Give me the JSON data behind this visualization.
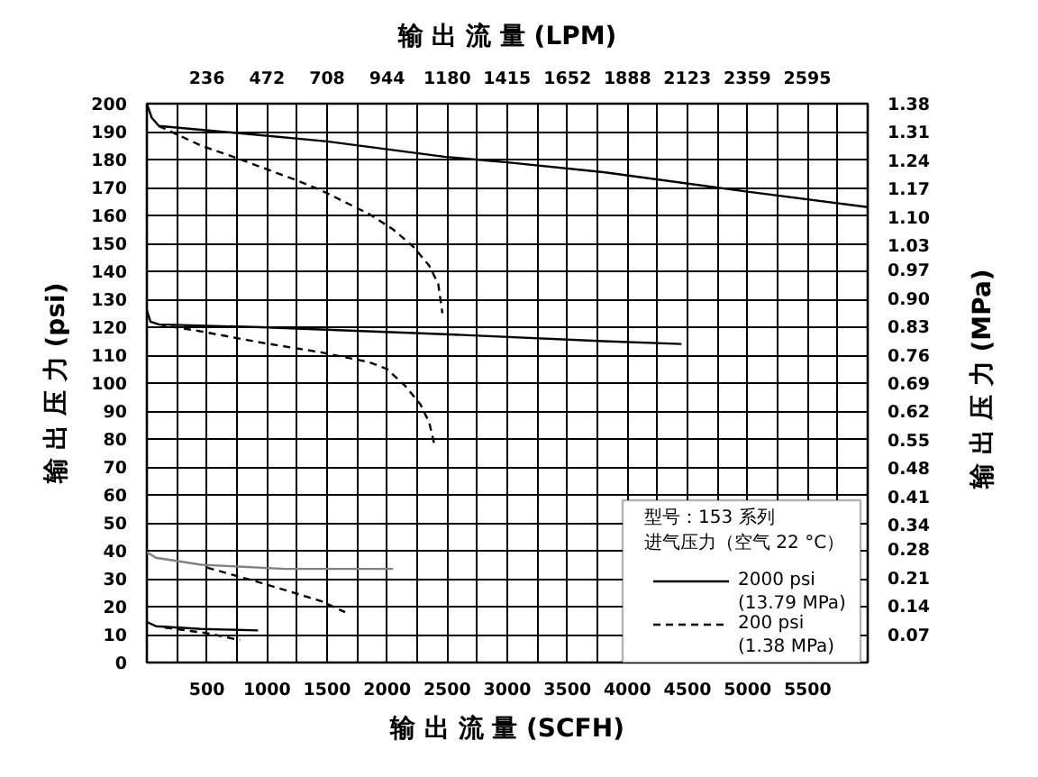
{
  "chart_data": {
    "type": "line",
    "xlabel": "输 出 流 量 (SCFH)",
    "x2label": "输 出 流 量 (LPM)",
    "ylabel": "输 出 压 力 (psi)",
    "y2label": "输 出 压 力 (MPa)",
    "annotations": [
      "型号：153 系列"
    ],
    "legend_title": "进气压力（空气 22 °C）",
    "xlim": [
      0,
      6000
    ],
    "xticks": [
      {
        "value": 250,
        "label": null
      },
      500,
      {
        "value": 750,
        "label": null
      },
      1000,
      {
        "value": 1250,
        "label": null
      },
      1500,
      {
        "value": 1750,
        "label": null
      },
      2000,
      {
        "value": 2250,
        "label": null
      },
      2500,
      {
        "value": 2750,
        "label": null
      },
      3000,
      {
        "value": 3250,
        "label": null
      },
      3500,
      {
        "value": 3750,
        "label": null
      },
      4000,
      {
        "value": 4250,
        "label": null
      },
      4500,
      {
        "value": 4750,
        "label": null
      },
      5000,
      {
        "value": 5250,
        "label": null
      },
      5500,
      {
        "value": 5750,
        "label": null
      }
    ],
    "x2lim": [
      0,
      2832
    ],
    "x2ticks": [
      236,
      472,
      708,
      944,
      1180,
      1415,
      1652,
      1888,
      2123,
      2359,
      2595
    ],
    "ylim": [
      0,
      200
    ],
    "yticks": [
      0,
      10,
      20,
      30,
      40,
      50,
      60,
      70,
      80,
      90,
      100,
      110,
      120,
      130,
      140,
      150,
      160,
      170,
      180,
      190,
      200
    ],
    "y2lim": [
      0,
      1.38
    ],
    "y2ticks": [
      0.07,
      0.14,
      0.21,
      0.28,
      0.34,
      0.41,
      0.48,
      0.55,
      0.62,
      0.69,
      0.76,
      0.83,
      {
        "value": 0.9,
        "label": "0.90"
      },
      0.97,
      1.03,
      {
        "value": 1.1,
        "label": "1.10"
      },
      1.17,
      1.24,
      1.31,
      1.38
    ],
    "grid": true,
    "legend": "bottom right",
    "series": [
      {
        "name": "2000 psi\n(13.79 MPa)",
        "color": "#000000",
        "line_style": "solid",
        "x": [
          0,
          40,
          100,
          750,
          1500,
          2475,
          3000,
          3800,
          5000,
          6000
        ],
        "values": [
          200,
          195,
          192,
          189.5,
          186.5,
          181,
          179,
          175.5,
          168.5,
          163
        ]
      },
      {
        "name": "200 psi\n(1.38 MPa)",
        "color": "#000000",
        "line_style": "dashed",
        "x": [
          100,
          450,
          750,
          1250,
          1450,
          1850,
          2050,
          2225,
          2350,
          2425,
          2460
        ],
        "values": [
          192,
          185,
          180.5,
          172.5,
          169,
          160.5,
          155,
          148.5,
          142,
          135.5,
          125
        ]
      },
      {
        "color": "#000000",
        "line_style": "solid",
        "x": [
          0,
          30,
          100,
          950,
          2475,
          3800,
          4450
        ],
        "values": [
          126,
          122,
          121,
          120,
          117.5,
          115,
          114
        ]
      },
      {
        "color": "#000000",
        "line_style": "dashed",
        "x": [
          100,
          450,
          950,
          1450,
          1850,
          2000,
          2150,
          2275,
          2350,
          2390
        ],
        "values": [
          121,
          118.5,
          114.5,
          111,
          107.5,
          105,
          99,
          92.5,
          86,
          78.5
        ]
      },
      {
        "color": "#808080",
        "line_style": "solid",
        "x": [
          0,
          75,
          450,
          1150,
          2050
        ],
        "values": [
          39.5,
          37.5,
          35,
          33.5,
          33.5
        ]
      },
      {
        "color": "#000000",
        "line_style": "dashed",
        "x": [
          500,
          950,
          1450,
          1650
        ],
        "values": [
          34,
          28.5,
          22,
          18
        ]
      },
      {
        "color": "#000000",
        "line_style": "solid",
        "x": [
          0,
          75,
          450,
          925
        ],
        "values": [
          14.5,
          13,
          12,
          11.5
        ]
      },
      {
        "color": "#000000",
        "line_style": "dashed",
        "x": [
          150,
          500,
          775
        ],
        "values": [
          12.5,
          10.5,
          8
        ]
      }
    ]
  }
}
